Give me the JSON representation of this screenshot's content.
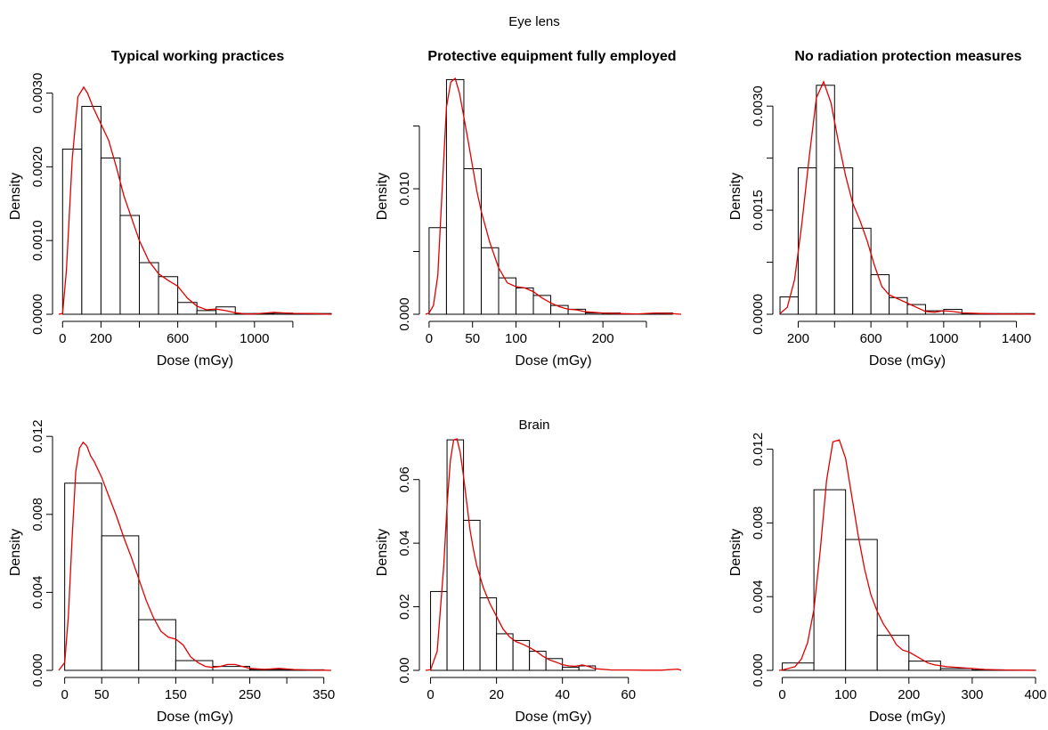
{
  "figure": {
    "top_heading": "Eye lens",
    "middle_heading": "Brain"
  },
  "style": {
    "hist_stroke": "#000000",
    "hist_fill": "#ffffff",
    "density_color": "#e00000"
  },
  "chart_data": [
    {
      "type": "histogram",
      "title": "Typical working practices",
      "xlabel": "Dose (mGy)",
      "ylabel": "Density",
      "xlim": [
        -20,
        1400
      ],
      "ylim": [
        0,
        0.0032
      ],
      "xticks": [
        0,
        200,
        600,
        1000
      ],
      "xtick_labels": [
        "0",
        "200",
        "600",
        "1000"
      ],
      "xtick_minor": [
        400,
        800,
        1200
      ],
      "yticks": [
        0,
        0.001,
        0.002,
        0.003
      ],
      "ytick_labels": [
        "0.0000",
        "0.0010",
        "0.0020",
        "0.0030"
      ],
      "bin_edges": [
        0,
        100,
        200,
        300,
        400,
        500,
        600,
        700,
        800,
        900,
        1000,
        1100,
        1200,
        1300,
        1400
      ],
      "values": [
        0.00224,
        0.00282,
        0.00212,
        0.00134,
        0.0007,
        0.00051,
        0.00016,
        5e-05,
        0.0001,
        1e-05,
        1e-05,
        1.5e-05,
        1e-05,
        1e-05
      ],
      "density": {
        "x": [
          -20,
          0,
          20,
          50,
          80,
          110,
          130,
          160,
          200,
          240,
          280,
          320,
          360,
          400,
          450,
          500,
          550,
          600,
          650,
          700,
          750,
          800,
          850,
          900,
          950,
          1000,
          1100,
          1200,
          1300,
          1400
        ],
        "y": [
          0,
          1e-05,
          0.0006,
          0.0021,
          0.00295,
          0.00308,
          0.003,
          0.0028,
          0.00258,
          0.00236,
          0.002,
          0.0016,
          0.0013,
          0.001,
          0.00072,
          0.00055,
          0.00046,
          0.00038,
          0.00022,
          0.00011,
          6e-05,
          7e-05,
          5e-05,
          2e-05,
          5e-06,
          5e-06,
          2.5e-05,
          1.2e-05,
          8e-06,
          0
        ]
      }
    },
    {
      "type": "histogram",
      "title": "Protective equipment fully employed",
      "xlabel": "Dose (mGy)",
      "ylabel": "Density",
      "xlim": [
        -4,
        290
      ],
      "ylim": [
        0,
        0.0188
      ],
      "xticks": [
        0,
        50,
        100,
        200
      ],
      "xtick_labels": [
        "0",
        "50",
        "100",
        "200"
      ],
      "xtick_minor": [
        150,
        250
      ],
      "yticks": [
        0,
        0.005,
        0.01,
        0.015
      ],
      "ytick_labels": [
        "0.000",
        "",
        "0.010",
        ""
      ],
      "bin_edges": [
        0,
        20,
        40,
        60,
        80,
        100,
        120,
        140,
        160,
        180,
        200,
        220,
        240,
        260,
        280
      ],
      "values": [
        0.0069,
        0.0187,
        0.0116,
        0.0053,
        0.0029,
        0.0021,
        0.0015,
        0.0007,
        0.0004,
        0.0001,
        0.0001,
        2e-05,
        2e-05,
        0.0001
      ],
      "density": {
        "x": [
          -4,
          0,
          5,
          10,
          15,
          20,
          25,
          30,
          35,
          40,
          45,
          50,
          55,
          60,
          70,
          80,
          90,
          100,
          110,
          120,
          130,
          140,
          150,
          160,
          170,
          180,
          200,
          220,
          240,
          260,
          280,
          290
        ],
        "y": [
          0,
          0.0001,
          0.0007,
          0.0031,
          0.0098,
          0.0165,
          0.0185,
          0.0188,
          0.0176,
          0.0157,
          0.0138,
          0.0118,
          0.0098,
          0.0082,
          0.0057,
          0.0037,
          0.0025,
          0.0022,
          0.0021,
          0.0018,
          0.0013,
          0.0009,
          0.0006,
          0.0004,
          0.00035,
          0.0002,
          0.0001,
          5e-05,
          3e-05,
          0.0001,
          5e-05,
          0
        ]
      }
    },
    {
      "type": "histogram",
      "title": "No radiation protection measures",
      "xlabel": "Dose (mGy)",
      "ylabel": "Density",
      "xlim": [
        95,
        1505
      ],
      "ylim": [
        0,
        0.0034
      ],
      "xticks": [
        200,
        600,
        1000,
        1400
      ],
      "xtick_labels": [
        "200",
        "600",
        "1000",
        "1400"
      ],
      "xtick_minor": [
        400,
        800,
        1200
      ],
      "yticks": [
        0,
        0.00075,
        0.0015,
        0.00225,
        0.003
      ],
      "ytick_labels": [
        "0.0000",
        "",
        "0.0015",
        "",
        "0.0030"
      ],
      "bin_edges": [
        100,
        200,
        300,
        400,
        500,
        600,
        700,
        800,
        900,
        1000,
        1100,
        1200,
        1300,
        1400,
        1500
      ],
      "values": [
        0.00025,
        0.00211,
        0.0033,
        0.00211,
        0.00124,
        0.00057,
        0.00024,
        0.00014,
        5e-05,
        7e-05,
        1e-05,
        1e-05,
        1e-05,
        1e-05
      ],
      "density": {
        "x": [
          100,
          140,
          180,
          220,
          260,
          300,
          340,
          380,
          420,
          460,
          500,
          540,
          580,
          620,
          660,
          700,
          750,
          800,
          850,
          900,
          950,
          1000,
          1050,
          1100,
          1200,
          1300,
          1400,
          1500
        ],
        "y": [
          1e-05,
          0.0001,
          0.0005,
          0.0013,
          0.00225,
          0.00312,
          0.00335,
          0.00305,
          0.0025,
          0.002,
          0.0016,
          0.00135,
          0.00105,
          0.0007,
          0.0004,
          0.00028,
          0.00022,
          0.00016,
          0.0001,
          4e-05,
          3e-05,
          5e-05,
          4e-05,
          2e-05,
          1e-05,
          5e-06,
          5e-06,
          0
        ]
      }
    },
    {
      "type": "histogram",
      "title": "",
      "xlabel": "Dose (mGy)",
      "ylabel": "Density",
      "xlim": [
        -8,
        360
      ],
      "ylim": [
        0,
        0.0121
      ],
      "xticks": [
        0,
        50,
        150,
        250,
        350
      ],
      "xtick_labels": [
        "0",
        "50",
        "150",
        "250",
        "350"
      ],
      "xtick_minor": [
        100,
        200,
        300
      ],
      "yticks": [
        0,
        0.004,
        0.008,
        0.012
      ],
      "ytick_labels": [
        "0.000",
        "0.004",
        "0.008",
        "0.012"
      ],
      "bin_edges": [
        0,
        50,
        100,
        150,
        200,
        250,
        300,
        350
      ],
      "values": [
        0.0096,
        0.0069,
        0.0026,
        0.0005,
        0.0002,
        5e-05,
        3e-05
      ],
      "density": {
        "x": [
          -8,
          0,
          5,
          10,
          15,
          20,
          25,
          30,
          35,
          40,
          50,
          60,
          70,
          80,
          90,
          100,
          110,
          120,
          130,
          140,
          150,
          160,
          170,
          180,
          190,
          200,
          210,
          220,
          230,
          240,
          250,
          270,
          290,
          310,
          330,
          350,
          360
        ],
        "y": [
          0,
          0.0004,
          0.0028,
          0.0068,
          0.0102,
          0.0114,
          0.0117,
          0.0115,
          0.011,
          0.0107,
          0.0099,
          0.0089,
          0.0079,
          0.0068,
          0.0058,
          0.0047,
          0.0036,
          0.0027,
          0.002,
          0.0017,
          0.0016,
          0.0013,
          0.0007,
          0.0004,
          0.0002,
          0.00015,
          0.0002,
          0.0003,
          0.0003,
          0.0002,
          0.0001,
          5e-05,
          0.0001,
          4e-05,
          2e-05,
          1e-05,
          0
        ]
      }
    },
    {
      "type": "histogram",
      "title": "Brain",
      "xlabel": "Dose (mGy)",
      "ylabel": "Density",
      "xlim": [
        -1.5,
        76
      ],
      "ylim": [
        0,
        0.0742
      ],
      "xticks": [
        0,
        20,
        40,
        60
      ],
      "xtick_labels": [
        "0",
        "20",
        "40",
        "60"
      ],
      "xtick_minor": [],
      "yticks": [
        0,
        0.02,
        0.04,
        0.06
      ],
      "ytick_labels": [
        "0.00",
        "0.02",
        "0.04",
        "0.06"
      ],
      "bin_edges": [
        0,
        5,
        10,
        15,
        20,
        25,
        30,
        35,
        40,
        45,
        50
      ],
      "values": [
        0.0248,
        0.0725,
        0.0472,
        0.0228,
        0.0115,
        0.0094,
        0.006,
        0.0037,
        0.001,
        0.0014
      ],
      "density": {
        "x": [
          -1.5,
          0,
          2,
          4,
          5,
          6,
          7,
          8,
          9,
          10,
          11,
          12,
          13,
          14,
          16,
          18,
          20,
          22,
          24,
          26,
          28,
          30,
          32,
          34,
          36,
          38,
          40,
          42,
          44,
          46,
          48,
          50,
          55,
          60,
          65,
          70,
          75,
          76
        ],
        "y": [
          0,
          0.0002,
          0.006,
          0.033,
          0.052,
          0.066,
          0.0725,
          0.0728,
          0.0685,
          0.061,
          0.0525,
          0.044,
          0.038,
          0.033,
          0.026,
          0.021,
          0.017,
          0.013,
          0.0105,
          0.009,
          0.0082,
          0.0072,
          0.006,
          0.0045,
          0.0033,
          0.0026,
          0.0018,
          0.0014,
          0.0013,
          0.0017,
          0.0012,
          0.0005,
          0.0001,
          0.0001,
          5e-05,
          5e-05,
          0.0004,
          0
        ]
      }
    },
    {
      "type": "histogram",
      "title": "",
      "xlabel": "Dose (mGy)",
      "ylabel": "Density",
      "xlim": [
        -5,
        400
      ],
      "ylim": [
        0,
        0.0128
      ],
      "xticks": [
        0,
        100,
        200,
        300,
        400
      ],
      "xtick_labels": [
        "0",
        "100",
        "200",
        "300",
        "400"
      ],
      "xtick_minor": [],
      "yticks": [
        0,
        0.004,
        0.008,
        0.012
      ],
      "ytick_labels": [
        "0.000",
        "0.004",
        "0.008",
        "0.012"
      ],
      "bin_edges": [
        0,
        50,
        100,
        150,
        200,
        250,
        300,
        350,
        400
      ],
      "values": [
        0.0004,
        0.0098,
        0.0071,
        0.0019,
        0.0005,
        0.0001,
        3e-05,
        1e-05
      ],
      "density": {
        "x": [
          -5,
          0,
          20,
          30,
          40,
          50,
          60,
          70,
          80,
          90,
          100,
          110,
          120,
          130,
          140,
          150,
          160,
          170,
          180,
          190,
          200,
          210,
          220,
          230,
          240,
          260,
          280,
          300,
          320,
          350,
          380,
          400
        ],
        "y": [
          0,
          2e-05,
          0.0002,
          0.0006,
          0.0015,
          0.0033,
          0.0065,
          0.0103,
          0.0124,
          0.0125,
          0.0115,
          0.0094,
          0.0073,
          0.0055,
          0.0041,
          0.0032,
          0.0025,
          0.002,
          0.0014,
          0.0011,
          0.001,
          0.0008,
          0.0006,
          0.0004,
          0.0003,
          0.0002,
          0.00015,
          0.0001,
          5e-05,
          2e-05,
          1e-05,
          0
        ]
      }
    }
  ]
}
